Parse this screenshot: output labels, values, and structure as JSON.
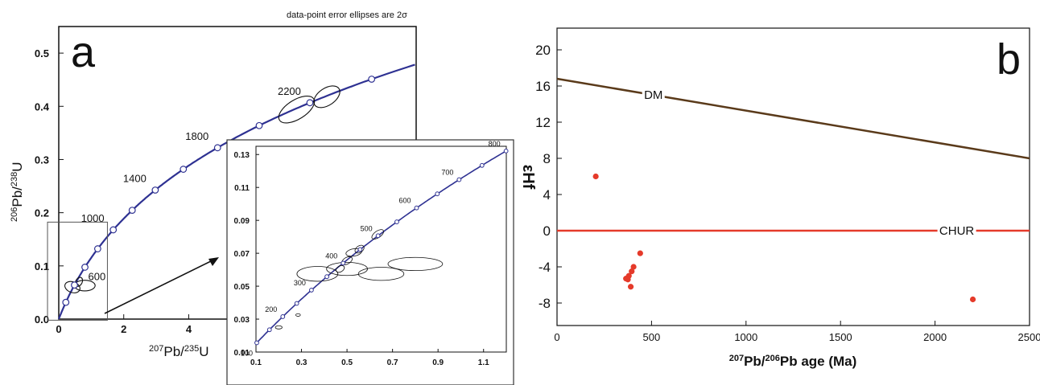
{
  "chart_data": [
    {
      "id": "a",
      "type": "line",
      "panel_letter": "a",
      "annotation": "data-point error ellipses are 2σ",
      "xlabel_mass": "207",
      "xlabel_elem": "Pb/",
      "xlabel_mass2": "235",
      "xlabel_elem2": "U",
      "ylabel_mass": "206",
      "ylabel_elem": "Pb/",
      "ylabel_mass2": "238",
      "ylabel_elem2": "U",
      "xlim": [
        0,
        11
      ],
      "ylim": [
        0,
        0.55
      ],
      "x_ticks": [
        0,
        2,
        4
      ],
      "x_tick_labels": [
        "0",
        "2",
        "4"
      ],
      "y_ticks": [
        0.0,
        0.1,
        0.2,
        0.3,
        0.4,
        0.5
      ],
      "y_tick_labels": [
        "0.0",
        "0.1",
        "0.2",
        "0.3",
        "0.4",
        "0.5"
      ],
      "concordia_ages_ma": [
        200,
        400,
        600,
        800,
        1000,
        1200,
        1400,
        1600,
        1800,
        2000,
        2200,
        2400,
        2600
      ],
      "age_labels": [
        {
          "age": 600,
          "text": "600"
        },
        {
          "age": 1000,
          "text": "1000"
        },
        {
          "age": 1400,
          "text": "1400"
        },
        {
          "age": 1800,
          "text": "1800"
        },
        {
          "age": 2200,
          "text": "2200"
        }
      ],
      "ellipses": [
        {
          "x": 7.32,
          "y": 0.394,
          "rx": 0.62,
          "ry": 0.012,
          "angle_deg": -32
        },
        {
          "x": 8.25,
          "y": 0.418,
          "rx": 0.45,
          "ry": 0.01,
          "angle_deg": -34
        },
        {
          "x": 0.42,
          "y": 0.06,
          "rx": 0.24,
          "ry": 0.004,
          "angle_deg": 20
        },
        {
          "x": 0.8,
          "y": 0.063,
          "rx": 0.32,
          "ry": 0.004,
          "angle_deg": 0
        },
        {
          "x": 0.62,
          "y": 0.07,
          "rx": 0.1,
          "ry": 0.003,
          "angle_deg": 28
        }
      ],
      "zoom_box": {
        "x0": 0.1,
        "x1": 1.2,
        "y0": 0.01,
        "y1": 0.14
      }
    },
    {
      "id": "a-inset",
      "type": "line",
      "xlim": [
        0.1,
        1.2
      ],
      "ylim": [
        0.01,
        0.135
      ],
      "x_ticks": [
        0.1,
        0.3,
        0.5,
        0.7,
        0.9,
        1.1
      ],
      "x_tick_labels": [
        "0.1",
        "0.3",
        "0.5",
        "0.7",
        "0.9",
        "1.1"
      ],
      "y_ticks": [
        0.01,
        0.03,
        0.05,
        0.07,
        0.09,
        0.11,
        0.13
      ],
      "y_tick_labels": [
        "0.01",
        "0.03",
        "0.05",
        "0.07",
        "0.09",
        "0.11",
        "0.13"
      ],
      "concordia_ages_ma": [
        100,
        150,
        200,
        250,
        300,
        350,
        400,
        450,
        500,
        550,
        600,
        650,
        700,
        750,
        800
      ],
      "age_labels": [
        {
          "age": 100,
          "text": "100"
        },
        {
          "age": 200,
          "text": "200"
        },
        {
          "age": 300,
          "text": "300"
        },
        {
          "age": 400,
          "text": "400"
        },
        {
          "age": 500,
          "text": "500"
        },
        {
          "age": 600,
          "text": "600"
        },
        {
          "age": 700,
          "text": "700"
        },
        {
          "age": 800,
          "text": "800"
        }
      ],
      "ellipses": [
        {
          "x": 0.37,
          "y": 0.0575,
          "rx": 0.09,
          "ry": 0.0045,
          "angle_deg": 0
        },
        {
          "x": 0.5,
          "y": 0.0605,
          "rx": 0.09,
          "ry": 0.004,
          "angle_deg": 0
        },
        {
          "x": 0.65,
          "y": 0.0575,
          "rx": 0.1,
          "ry": 0.004,
          "angle_deg": 0
        },
        {
          "x": 0.8,
          "y": 0.0635,
          "rx": 0.12,
          "ry": 0.004,
          "angle_deg": 0
        },
        {
          "x": 0.47,
          "y": 0.0605,
          "rx": 0.02,
          "ry": 0.0018,
          "angle_deg": 30
        },
        {
          "x": 0.5,
          "y": 0.0655,
          "rx": 0.025,
          "ry": 0.002,
          "angle_deg": 30
        },
        {
          "x": 0.53,
          "y": 0.0705,
          "rx": 0.035,
          "ry": 0.0022,
          "angle_deg": 10
        },
        {
          "x": 0.555,
          "y": 0.0725,
          "rx": 0.022,
          "ry": 0.002,
          "angle_deg": 35
        },
        {
          "x": 0.635,
          "y": 0.0815,
          "rx": 0.03,
          "ry": 0.002,
          "angle_deg": 35
        },
        {
          "x": 0.285,
          "y": 0.0325,
          "rx": 0.01,
          "ry": 0.0008,
          "angle_deg": 0
        },
        {
          "x": 0.2,
          "y": 0.025,
          "rx": 0.015,
          "ry": 0.001,
          "angle_deg": 0
        }
      ]
    },
    {
      "id": "b",
      "type": "scatter",
      "panel_letter": "b",
      "xlabel_mass": "207",
      "xlabel_elem": "Pb/",
      "xlabel_mass2": "206",
      "xlabel_elem2": "Pb age (Ma)",
      "ylabel": "εHf",
      "xlim": [
        0,
        2500
      ],
      "ylim": [
        -10,
        20
      ],
      "x_ticks": [
        0,
        500,
        1000,
        1500,
        2000,
        2500
      ],
      "x_tick_labels": [
        "0",
        "500",
        "1000",
        "1500",
        "2000",
        "2500"
      ],
      "y_ticks": [
        -8,
        -4,
        0,
        4,
        8,
        12,
        16,
        20
      ],
      "y_tick_labels": [
        "-8",
        "-4",
        "0",
        "4",
        "8",
        "12",
        "16",
        "20"
      ],
      "reference_lines": [
        {
          "name": "DM",
          "x": [
            0,
            2500
          ],
          "y": [
            16.8,
            8.0
          ],
          "color": "#5a3a1a",
          "label_at_x": 510
        },
        {
          "name": "CHUR",
          "x": [
            0,
            2500
          ],
          "y": [
            0,
            0
          ],
          "color": "#e53a2a",
          "label_at_x": 2115
        }
      ],
      "points": {
        "color": "#e53a2a",
        "x": [
          205,
          440,
          405,
          395,
          380,
          365,
          375,
          390,
          2200
        ],
        "y": [
          6.0,
          -2.5,
          -4.0,
          -4.5,
          -5.0,
          -5.3,
          -5.4,
          -6.2,
          -7.6
        ]
      }
    }
  ],
  "colors": {
    "concordia": "#2e3192",
    "frame": "#111111"
  }
}
